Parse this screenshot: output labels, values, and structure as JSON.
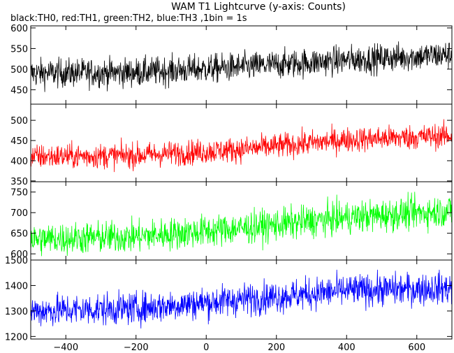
{
  "chart_data": {
    "type": "line",
    "title": "WAM T1 Lightcurve (y-axis: Counts)",
    "subtitle": "black:TH0, red:TH1, green:TH2, blue:TH3 ,1bin = 1s",
    "xlim": [
      -500,
      700
    ],
    "x_ticks": [
      -400,
      -200,
      0,
      200,
      400,
      600
    ],
    "x_tick_labels": [
      "−400",
      "−200",
      "0",
      "200",
      "400",
      "600"
    ],
    "grid": false,
    "bin_seconds": 1,
    "panels": [
      {
        "name": "TH0",
        "color": "#000000",
        "ylim": [
          415,
          605
        ],
        "y_ticks": [
          450,
          500,
          550,
          600
        ],
        "trend": {
          "x": [
            -500,
            -200,
            100,
            400,
            700
          ],
          "y": [
            490,
            492,
            505,
            522,
            535
          ]
        },
        "noise_amplitude": 25
      },
      {
        "name": "TH1",
        "color": "#ff0000",
        "ylim": [
          348,
          540
        ],
        "y_ticks": [
          350,
          400,
          450,
          500
        ],
        "trend": {
          "x": [
            -500,
            -200,
            100,
            400,
            700
          ],
          "y": [
            410,
            413,
            428,
            452,
            462
          ]
        },
        "noise_amplitude": 22
      },
      {
        "name": "TH2",
        "color": "#00ff00",
        "ylim": [
          585,
          775
        ],
        "y_ticks": [
          600,
          650,
          700,
          750
        ],
        "trend": {
          "x": [
            -500,
            -200,
            100,
            400,
            700
          ],
          "y": [
            635,
            642,
            662,
            688,
            705
          ]
        },
        "noise_amplitude": 28
      },
      {
        "name": "TH3",
        "color": "#0000ff",
        "ylim": [
          1190,
          1500
        ],
        "y_ticks": [
          1200,
          1300,
          1400,
          1500
        ],
        "trend": {
          "x": [
            -500,
            -200,
            100,
            400,
            700
          ],
          "y": [
            1300,
            1310,
            1345,
            1380,
            1390
          ]
        },
        "noise_amplitude": 45
      }
    ]
  }
}
